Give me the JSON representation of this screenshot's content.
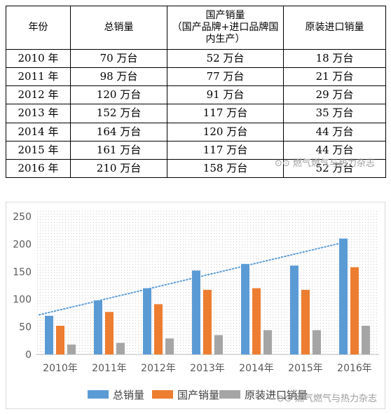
{
  "table": {
    "headers": [
      "年份",
      "总销量",
      "国产销量\n（国产品牌+进口品牌国内生产）",
      "原装进口销量"
    ],
    "rows": [
      [
        "2010 年",
        "70 万台",
        "52 万台",
        "18 万台"
      ],
      [
        "2011 年",
        "98 万台",
        "77 万台",
        "21 万台"
      ],
      [
        "2012 年",
        "120 万台",
        "91 万台",
        "29 万台"
      ],
      [
        "2013 年",
        "152 万台",
        "117 万台",
        "35 万台"
      ],
      [
        "2014 年",
        "164 万台",
        "120 万台",
        "44 万台"
      ],
      [
        "2015 年",
        "161 万台",
        "117 万台",
        "44 万台"
      ],
      [
        "2016 年",
        "210 万台",
        "158 万台",
        "52 万台"
      ]
    ]
  },
  "watermark": "燃气燃气与热力杂志",
  "chart_data": {
    "type": "bar",
    "categories": [
      "2010年",
      "2011年",
      "2012年",
      "2013年",
      "2014年",
      "2015年",
      "2016年"
    ],
    "series": [
      {
        "name": "总销量",
        "values": [
          70,
          98,
          120,
          152,
          164,
          161,
          210
        ],
        "color": "#5b9bd5"
      },
      {
        "name": "国产销量",
        "values": [
          52,
          77,
          91,
          117,
          120,
          117,
          158
        ],
        "color": "#ed7d31"
      },
      {
        "name": "原装进口销量",
        "values": [
          18,
          21,
          29,
          35,
          44,
          44,
          52
        ],
        "color": "#a5a5a5"
      }
    ],
    "trendline": {
      "series": "总销量",
      "style": "dotted",
      "color": "#5b9bd5"
    },
    "yticks": [
      0,
      50,
      100,
      150,
      200,
      250
    ],
    "ylim": [
      0,
      250
    ],
    "grid": false,
    "background": "dotted",
    "legend": "bottom",
    "title": "",
    "xlabel": "",
    "ylabel": ""
  }
}
